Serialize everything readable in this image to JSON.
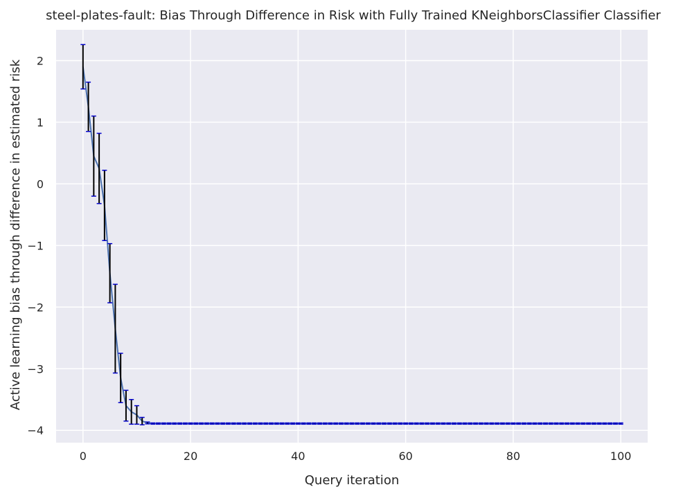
{
  "chart_data": {
    "type": "line",
    "title": "steel-plates-fault: Bias Through Difference in Risk with Fully Trained KNeighborsClassifier Classifier",
    "xlabel": "Query iteration",
    "ylabel": "Active learning bias through difference in estimated risk",
    "xlim": [
      -5,
      105
    ],
    "ylim": [
      -4.2,
      2.5
    ],
    "xticks": [
      0,
      20,
      40,
      60,
      80,
      100
    ],
    "yticks": [
      -4,
      -3,
      -2,
      -1,
      0,
      1,
      2
    ],
    "xtick_labels": [
      "0",
      "20",
      "40",
      "60",
      "80",
      "100"
    ],
    "ytick_labels": [
      "−4",
      "−3",
      "−2",
      "−1",
      "0",
      "1",
      "2"
    ],
    "grid": true,
    "series": [
      {
        "mean_head": [
          1.9,
          1.25,
          0.45,
          0.25,
          -0.35,
          -1.45,
          -2.35,
          -3.15,
          -3.6,
          -3.7,
          -3.75,
          -3.85,
          -3.88,
          -3.89
        ],
        "err_head": [
          0.36,
          0.4,
          0.65,
          0.57,
          0.57,
          0.48,
          0.72,
          0.4,
          0.25,
          0.2,
          0.15,
          0.06,
          0.015,
          0.01
        ],
        "tail_value": -3.89,
        "tail_err": 0.01,
        "x_max": 100
      }
    ],
    "colors": {
      "background": "#eaeaf2",
      "grid": "#ffffff",
      "line": "#4c72b0",
      "errorbar": "#000000",
      "cap": "#0000cc"
    }
  }
}
